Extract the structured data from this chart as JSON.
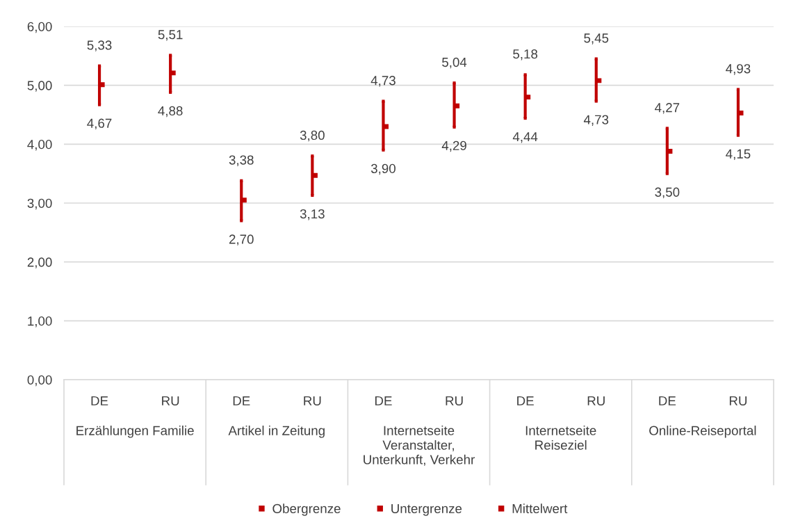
{
  "chart_data": {
    "type": "scatter",
    "categories": [
      "DE",
      "RU",
      "DE",
      "RU",
      "DE",
      "RU",
      "DE",
      "RU",
      "DE",
      "RU"
    ],
    "annotations": [
      "Erzählungen Familie",
      "Artikel in Zeitung",
      "Internetseite\nVeranstalter,\nUnterkunft, Verkehr",
      "Internetseite\nReiseziel",
      "Online-Reiseportal"
    ],
    "series": [
      {
        "name": "Obergrenze",
        "color": "#c00000",
        "marker": "square",
        "values": [
          5.33,
          5.51,
          3.38,
          3.8,
          4.73,
          5.04,
          5.18,
          5.45,
          4.27,
          4.93
        ],
        "value_labels": [
          "5,33",
          "5,51",
          "3,38",
          "3,80",
          "4,73",
          "5,04",
          "5,18",
          "5,45",
          "4,27",
          "4,93"
        ]
      },
      {
        "name": "Untergrenze",
        "color": "#c00000",
        "marker": "square",
        "values": [
          4.67,
          4.88,
          2.7,
          3.13,
          3.9,
          4.29,
          4.44,
          4.73,
          3.5,
          4.15
        ],
        "value_labels": [
          "4,67",
          "4,88",
          "2,70",
          "3,13",
          "3,90",
          "4,29",
          "4,44",
          "4,73",
          "3,50",
          "4,15"
        ]
      },
      {
        "name": "Mittelwert",
        "color": "#c00000",
        "marker": "square",
        "values": [
          5.01,
          5.21,
          3.05,
          3.47,
          4.3,
          4.65,
          4.8,
          5.08,
          3.88,
          4.53
        ]
      }
    ],
    "ylim": [
      0,
      6
    ],
    "yticks": [
      {
        "value": 0,
        "label": "0,00"
      },
      {
        "value": 1,
        "label": "1,00"
      },
      {
        "value": 2,
        "label": "2,00"
      },
      {
        "value": 3,
        "label": "3,00"
      },
      {
        "value": 4,
        "label": "4,00"
      },
      {
        "value": 5,
        "label": "5,00"
      },
      {
        "value": 6,
        "label": "6,00"
      }
    ],
    "grid": "y",
    "legend": "bottom"
  }
}
